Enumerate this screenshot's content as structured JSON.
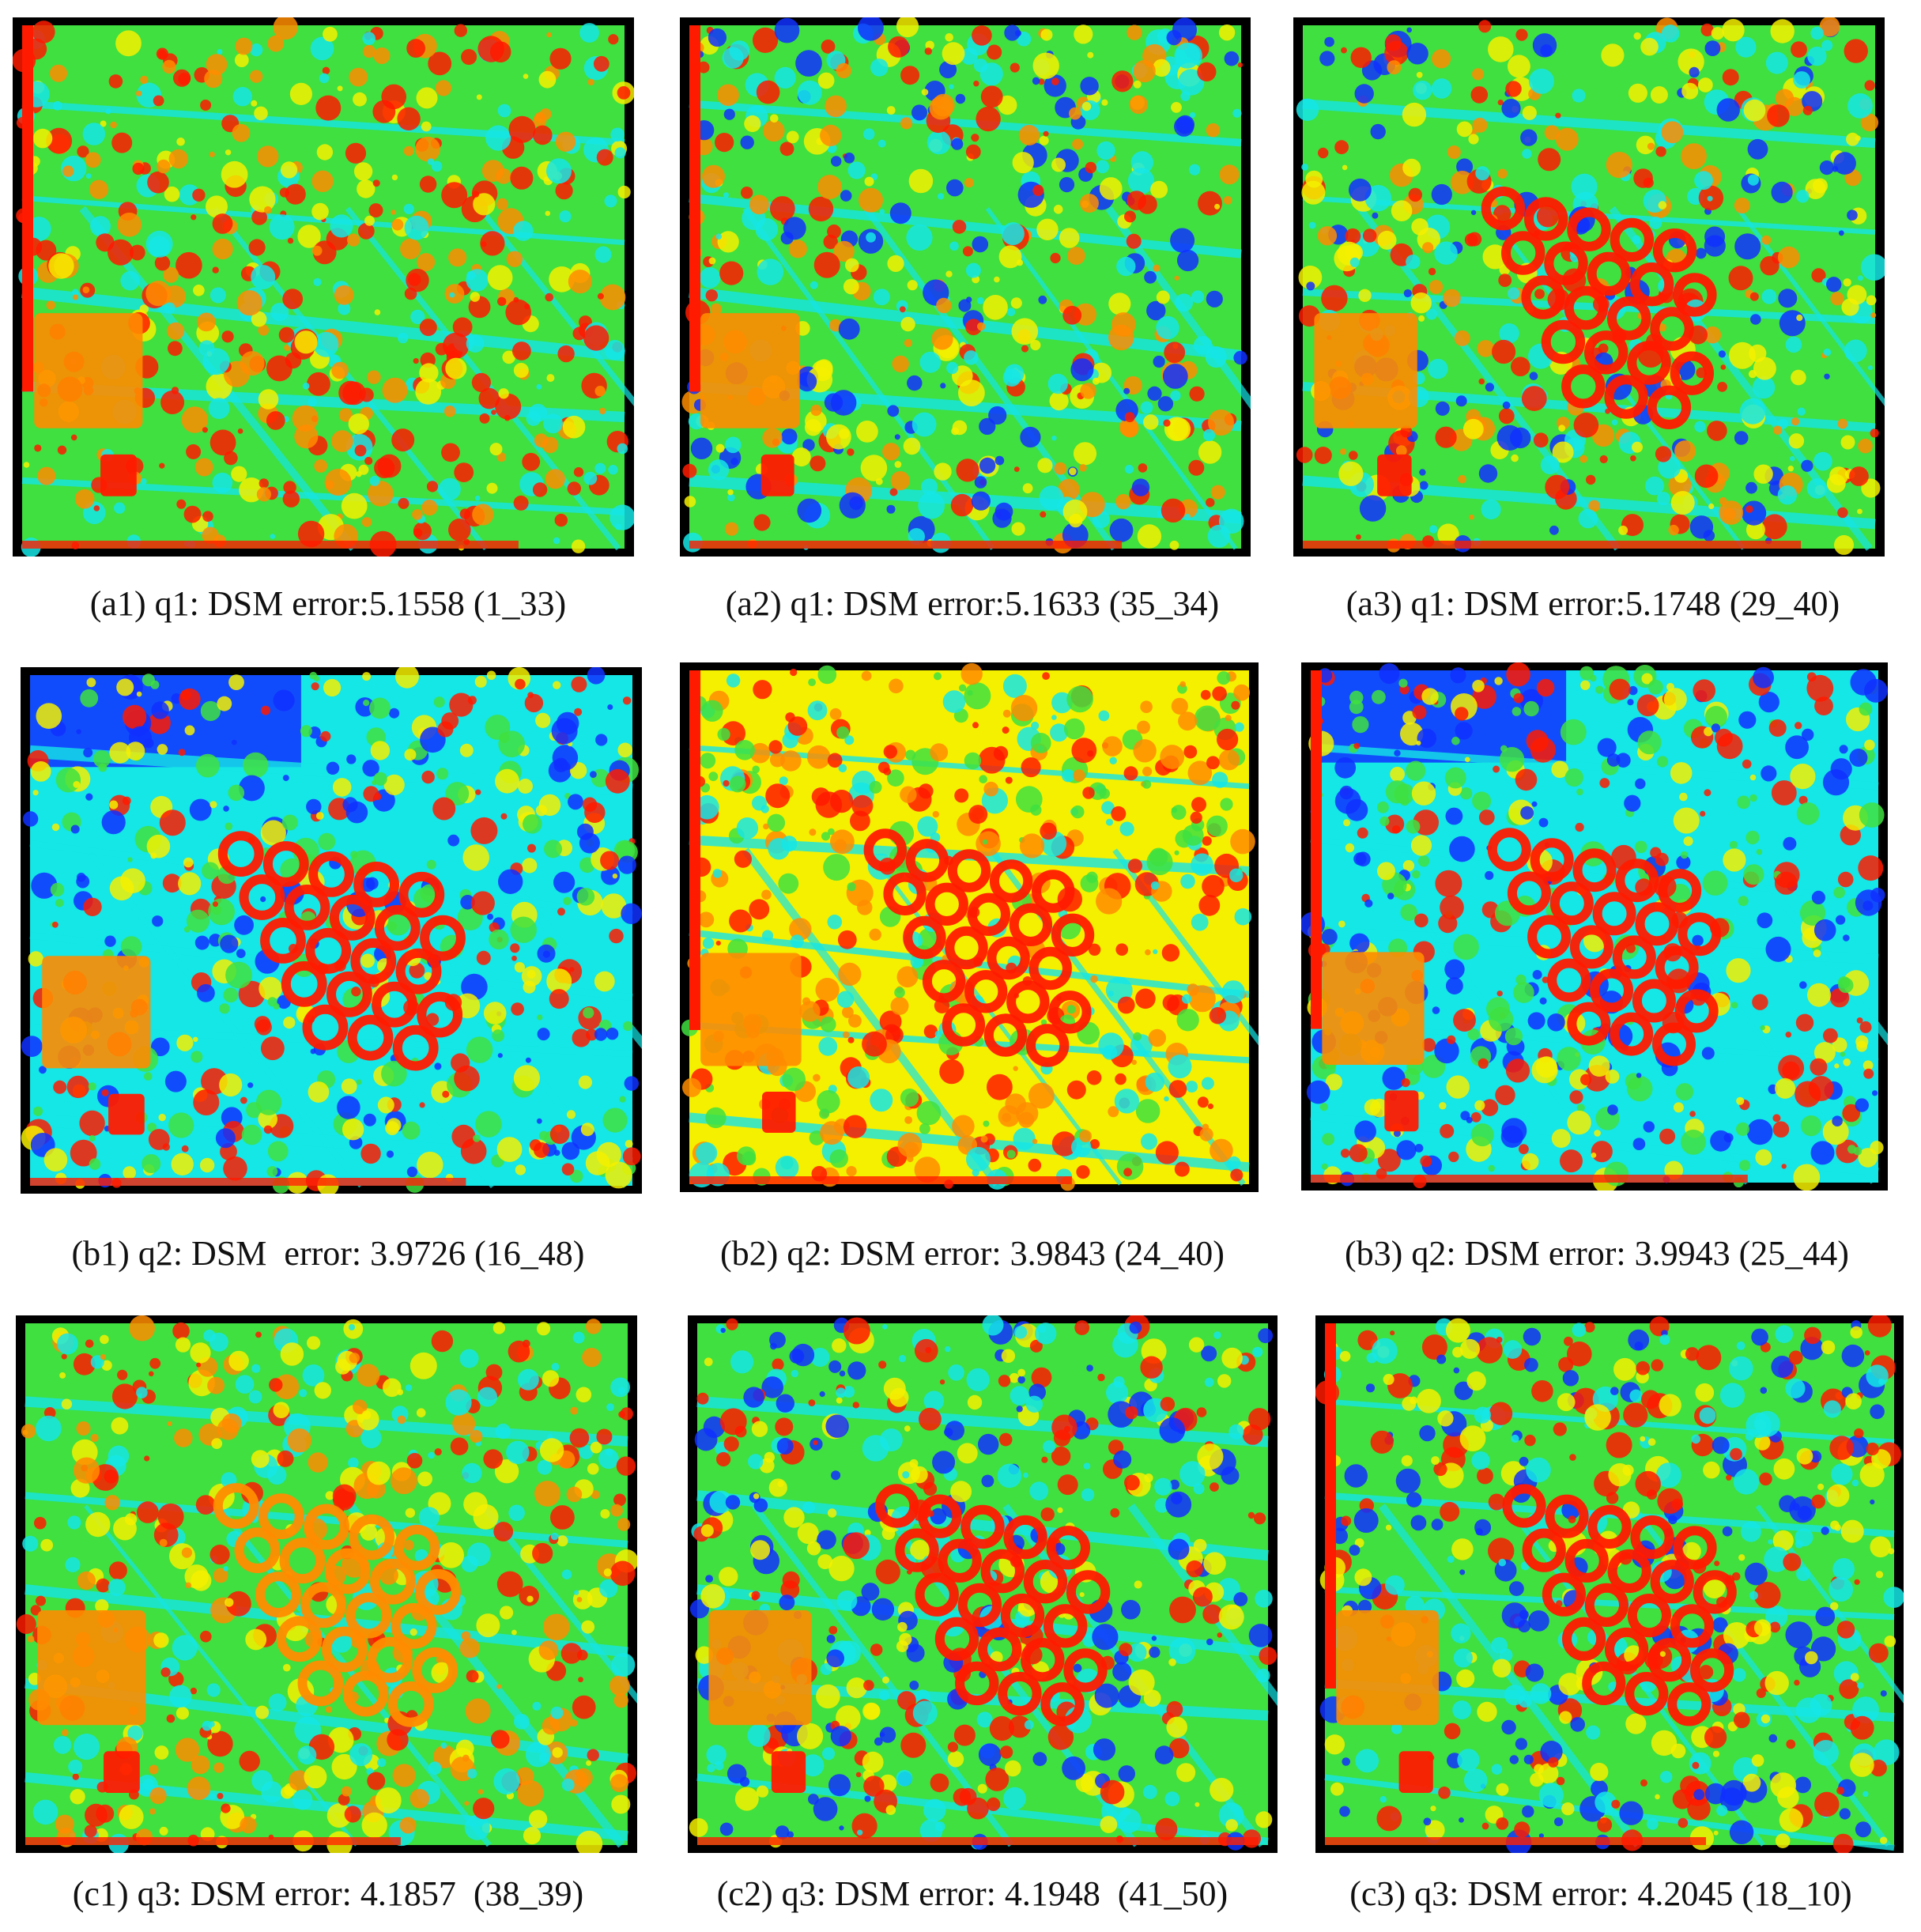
{
  "figure": {
    "panels": [
      {
        "id": "a1",
        "caption": "(a1) q1: DSM error:5.1558 (1_33)",
        "image_alt": "DSM error colour map",
        "palette": "jet",
        "dominant_tones": [
          "red",
          "green",
          "cyan"
        ]
      },
      {
        "id": "a2",
        "caption": "(a2) q1: DSM error:5.1633 (35_34)",
        "image_alt": "DSM error colour map",
        "palette": "jet",
        "dominant_tones": [
          "green",
          "yellow",
          "red"
        ]
      },
      {
        "id": "a3",
        "caption": "(a3) q1: DSM error:5.1748 (29_40)",
        "image_alt": "DSM error colour map",
        "palette": "jet",
        "dominant_tones": [
          "green",
          "red",
          "cyan"
        ]
      },
      {
        "id": "b1",
        "caption": "(b1) q2: DSM  error: 3.9726 (16_48)",
        "image_alt": "DSM error colour map",
        "palette": "jet",
        "dominant_tones": [
          "cyan",
          "green",
          "red",
          "blue"
        ]
      },
      {
        "id": "b2",
        "caption": "(b2) q2: DSM error: 3.9843 (24_40)",
        "image_alt": "DSM error colour map",
        "palette": "jet",
        "dominant_tones": [
          "yellow",
          "green",
          "red",
          "orange"
        ]
      },
      {
        "id": "b3",
        "caption": "(b3) q2: DSM error: 3.9943 (25_44)",
        "image_alt": "DSM error colour map",
        "palette": "jet",
        "dominant_tones": [
          "cyan",
          "green",
          "red",
          "blue"
        ]
      },
      {
        "id": "c1",
        "caption": "(c1) q3: DSM error: 4.1857  (38_39)",
        "image_alt": "DSM error colour map",
        "palette": "jet",
        "dominant_tones": [
          "green",
          "yellow",
          "orange"
        ]
      },
      {
        "id": "c2",
        "caption": "(c2) q3: DSM error: 4.1948  (41_50)",
        "image_alt": "DSM error colour map",
        "palette": "jet",
        "dominant_tones": [
          "green",
          "cyan",
          "red"
        ]
      },
      {
        "id": "c3",
        "caption": "(c3) q3: DSM error: 4.2045 (18_10)",
        "image_alt": "DSM error colour map",
        "palette": "jet",
        "dominant_tones": [
          "green",
          "red",
          "cyan"
        ]
      }
    ],
    "colors": {
      "background": "#ffffff",
      "frame": "#000000",
      "jet_red": "#ff1a00",
      "jet_orange": "#ff8c00",
      "jet_yellow": "#f5f000",
      "jet_green": "#3fe03f",
      "jet_cyan": "#15e6e6",
      "jet_blue": "#1030ff"
    }
  }
}
